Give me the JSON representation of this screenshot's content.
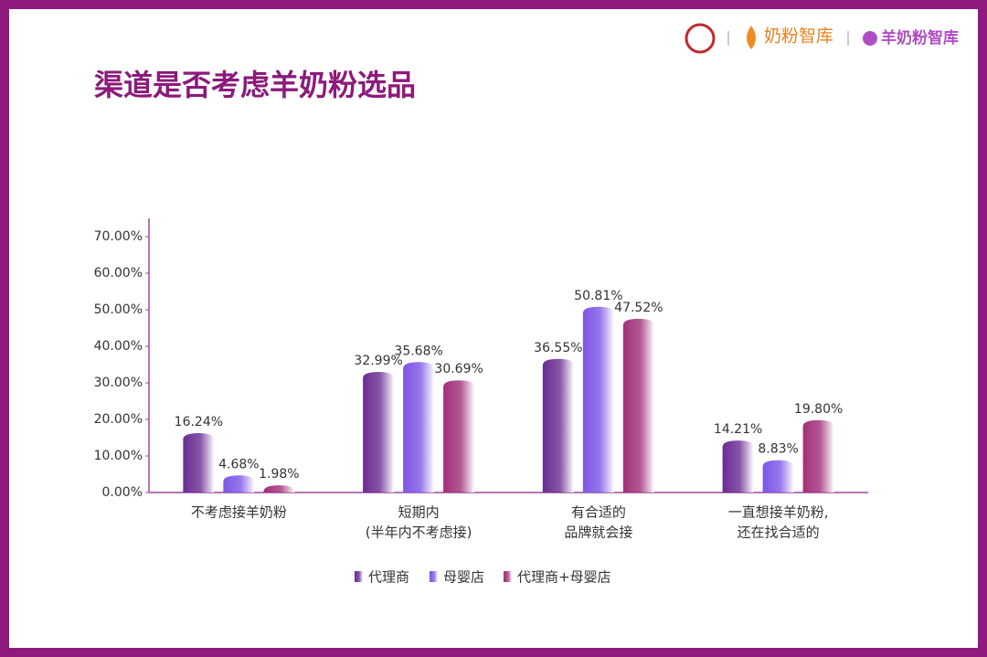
{
  "chart_data": {
    "type": "bar",
    "title": "渠道是否考虑羊奶粉选品",
    "categories": [
      [
        "不考虑接羊奶粉"
      ],
      [
        "短期内",
        "(半年内不考虑接)"
      ],
      [
        "有合适的",
        "品牌就会接"
      ],
      [
        "一直想接羊奶粉,",
        "还在找合适的"
      ]
    ],
    "series": [
      {
        "name": "代理商",
        "color": "#6a2c91",
        "values": [
          16.24,
          32.99,
          36.55,
          14.21
        ],
        "value_labels": [
          "16.24%",
          "32.99%",
          "36.55%",
          "14.21%"
        ]
      },
      {
        "name": "母婴店",
        "color": "#7d55e6",
        "values": [
          4.68,
          35.68,
          50.81,
          8.83
        ],
        "value_labels": [
          "4.68%",
          "35.68%",
          "50.81%",
          "8.83%"
        ]
      },
      {
        "name": "代理商+母婴店",
        "color": "#a12f78",
        "values": [
          1.98,
          30.69,
          47.52,
          19.8
        ],
        "value_labels": [
          "1.98%",
          "30.69%",
          "47.52%",
          "19.80%"
        ]
      }
    ],
    "ylim": [
      0,
      75
    ],
    "yticks": [
      {
        "value": 0,
        "label": "0.00%"
      },
      {
        "value": 10,
        "label": "10.00%"
      },
      {
        "value": 20,
        "label": "20.00%"
      },
      {
        "value": 30,
        "label": "30.00%"
      },
      {
        "value": 40,
        "label": "40.00%"
      },
      {
        "value": 50,
        "label": "50.00%"
      },
      {
        "value": 60,
        "label": "60.00%"
      },
      {
        "value": 70,
        "label": "70.00%"
      }
    ],
    "legend": "bottom"
  },
  "logos": [
    "奶粉智库",
    "羊奶粉智库"
  ]
}
